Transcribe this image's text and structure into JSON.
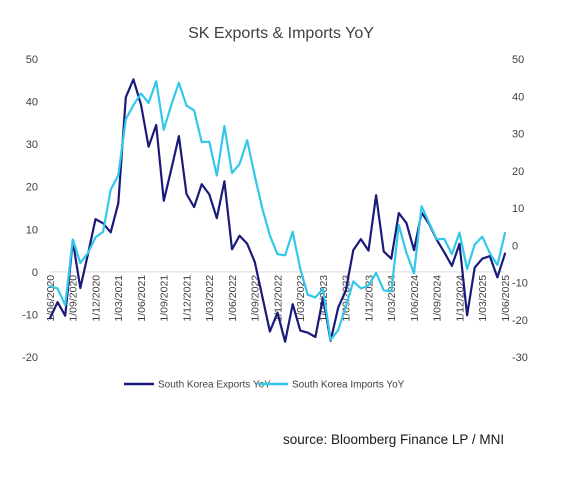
{
  "chart_data": {
    "type": "line",
    "title": "SK Exports & Imports YoY",
    "x": [
      "1/06/2020",
      "1/07/2020",
      "1/08/2020",
      "1/09/2020",
      "1/10/2020",
      "1/11/2020",
      "1/12/2020",
      "1/01/2021",
      "1/02/2021",
      "1/03/2021",
      "1/04/2021",
      "1/05/2021",
      "1/06/2021",
      "1/07/2021",
      "1/08/2021",
      "1/09/2021",
      "1/10/2021",
      "1/11/2021",
      "1/12/2021",
      "1/01/2022",
      "1/02/2022",
      "1/03/2022",
      "1/04/2022",
      "1/05/2022",
      "1/06/2022",
      "1/07/2022",
      "1/08/2022",
      "1/09/2022",
      "1/10/2022",
      "1/11/2022",
      "1/12/2022",
      "1/01/2023",
      "1/02/2023",
      "1/03/2023",
      "1/04/2023",
      "1/05/2023",
      "1/06/2023",
      "1/07/2023",
      "1/08/2023",
      "1/09/2023",
      "1/10/2023",
      "1/11/2023",
      "1/12/2023",
      "1/01/2024",
      "1/02/2024",
      "1/03/2024",
      "1/04/2024",
      "1/05/2024",
      "1/06/2024",
      "1/07/2024",
      "1/08/2024",
      "1/09/2024",
      "1/10/2024",
      "1/11/2024",
      "1/12/2024",
      "1/01/2025",
      "1/02/2025",
      "1/03/2025",
      "1/04/2025",
      "1/05/2025",
      "1/06/2025"
    ],
    "tick_labels": [
      "1/06/2020",
      "1/09/2020",
      "1/12/2020",
      "1/03/2021",
      "1/06/2021",
      "1/09/2021",
      "1/12/2021",
      "1/03/2022",
      "1/06/2022",
      "1/09/2022",
      "1/12/2022",
      "1/03/2023",
      "1/06/2023",
      "1/09/2023",
      "1/12/2023",
      "1/03/2024",
      "1/06/2024",
      "1/09/2024",
      "1/12/2024",
      "1/03/2025",
      "1/06/2025"
    ],
    "series": [
      {
        "name": "South Korea Exports YoY",
        "axis": "left",
        "color": "#1a1a7a",
        "values": [
          -10.9,
          -7.1,
          -10.3,
          7.3,
          -3.8,
          4.1,
          12.4,
          11.4,
          9.3,
          16.1,
          41.0,
          45.2,
          39.3,
          29.4,
          34.5,
          16.7,
          24.1,
          31.9,
          18.3,
          15.2,
          20.6,
          18.2,
          12.6,
          21.3,
          5.3,
          8.5,
          6.6,
          2.3,
          -5.8,
          -14.0,
          -9.6,
          -16.4,
          -7.6,
          -13.8,
          -14.3,
          -15.3,
          -6.0,
          -16.2,
          -8.4,
          -4.4,
          5.1,
          7.7,
          5.0,
          18.0,
          4.8,
          3.1,
          13.8,
          11.5,
          5.1,
          13.9,
          11.2,
          7.5,
          4.6,
          1.4,
          6.6,
          -10.2,
          1.0,
          3.1,
          3.7,
          -1.3,
          4.3
        ]
      },
      {
        "name": "South Korea Imports YoY",
        "axis": "right",
        "color": "#33c7ea",
        "values": [
          -11.0,
          -11.6,
          -16.1,
          1.6,
          -4.8,
          -2.1,
          2.1,
          3.6,
          14.9,
          18.8,
          33.8,
          37.6,
          40.7,
          38.2,
          44.0,
          31.0,
          37.7,
          43.6,
          37.5,
          36.2,
          27.7,
          27.8,
          18.7,
          32.0,
          19.4,
          21.8,
          28.2,
          18.6,
          9.9,
          2.6,
          -2.4,
          -2.7,
          3.6,
          -6.4,
          -13.3,
          -14.0,
          -11.7,
          -25.4,
          -22.8,
          -16.5,
          -9.7,
          -11.6,
          -10.8,
          -7.4,
          -12.1,
          -12.4,
          5.4,
          -2.0,
          -7.5,
          10.5,
          6.0,
          1.6,
          1.7,
          -2.4,
          3.4,
          -6.4,
          0.2,
          2.3,
          -2.1,
          -5.3,
          3.3
        ]
      }
    ],
    "y_left": {
      "ylim": [
        -20,
        50
      ],
      "ticks": [
        "50",
        "40",
        "30",
        "20",
        "10",
        "0",
        "-10",
        "-20"
      ]
    },
    "y_right": {
      "ylim": [
        -30,
        50
      ],
      "ticks": [
        "50",
        "40",
        "30",
        "20",
        "10",
        "0",
        "-10",
        "-20",
        "-30"
      ]
    },
    "grid": false,
    "legend_position": "bottom"
  },
  "source": "source: Bloomberg Finance LP / MNI"
}
